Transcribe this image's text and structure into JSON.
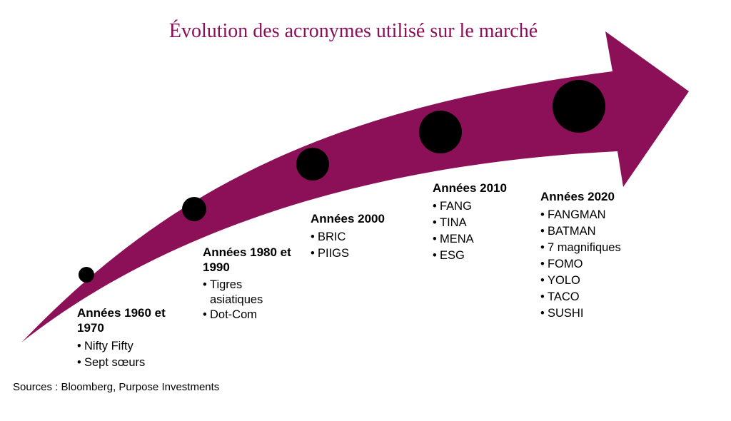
{
  "title": "Évolution des acronymes utilisé sur le marché",
  "colors": {
    "arrow": "#8b1058",
    "dot": "#000000",
    "title": "#8b1058"
  },
  "eras": [
    {
      "heading": "Années 1960 et 1970",
      "items": [
        "Nifty Fifty",
        "Sept sœurs"
      ]
    },
    {
      "heading": "Années 1980 et 1990",
      "items": [
        "Tigres asiatiques",
        "Dot-Com"
      ]
    },
    {
      "heading": "Années 2000",
      "items": [
        "BRIC",
        "PIIGS"
      ]
    },
    {
      "heading": "Années 2010",
      "items": [
        "FANG",
        "TINA",
        "MENA",
        "ESG"
      ]
    },
    {
      "heading": "Années 2020",
      "items": [
        "FANGMAN",
        "BATMAN",
        "7 magnifiques",
        "FOMO",
        "YOLO",
        "TACO",
        "SUSHI"
      ]
    }
  ],
  "sources": "Sources : Bloomberg, Purpose Investments"
}
